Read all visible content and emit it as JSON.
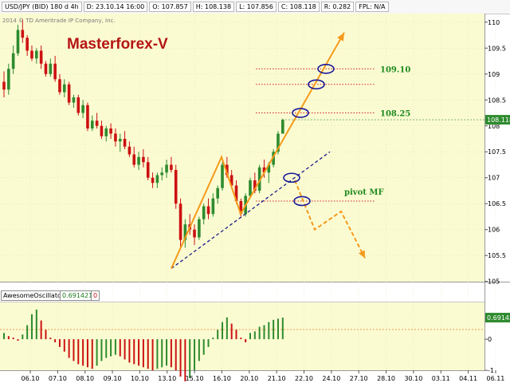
{
  "info_bar": {
    "symbol": "USD/JPY (BID) 180 d 4h",
    "date": "D: 23.10.14 16:00",
    "open": "O: 107.857",
    "high": "H: 108.138",
    "low": "L: 107.856",
    "close": "C: 108.118",
    "range": "R: 0.282",
    "fpl": "FPL: N/A"
  },
  "copyright": "2014 © TD Ameritrade IP Company, Inc.",
  "brand": "Masterforex-V",
  "colors": {
    "bull": "#2e8b2e",
    "bear": "#cc1111",
    "pane_bg": "#fbfbd2",
    "annotation": "#f59a1a",
    "trendline": "#1c1c8c",
    "level": "#d02020",
    "level_label": "#1e8a1e"
  },
  "chart_data": [
    {
      "type": "candlestick",
      "title": "USD/JPY (BID) 180 d 4h",
      "yticks": [
        105,
        105.5,
        106,
        106.5,
        107,
        107.5,
        108,
        108.5,
        109,
        109.5,
        110
      ],
      "ylim": [
        104.98,
        110.12
      ],
      "xticks": [
        "06.10",
        "07.10",
        "08.10",
        "09.10",
        "10.10",
        "13.10",
        "15.10",
        "16.10",
        "20.10",
        "21.10",
        "22.10",
        "24.10",
        "27.10",
        "28.10",
        "30.10",
        "03.11",
        "04.11",
        "06.11"
      ],
      "last_price": 108.118,
      "ohlc": [
        [
          108.85,
          109.05,
          108.55,
          108.7
        ],
        [
          108.7,
          109.2,
          108.6,
          109.1
        ],
        [
          109.1,
          109.55,
          109.0,
          109.4
        ],
        [
          109.4,
          109.95,
          109.35,
          109.85
        ],
        [
          109.85,
          110.05,
          109.6,
          109.7
        ],
        [
          109.7,
          109.75,
          109.35,
          109.45
        ],
        [
          109.45,
          109.55,
          109.25,
          109.3
        ],
        [
          109.3,
          109.5,
          109.2,
          109.45
        ],
        [
          109.45,
          109.55,
          109.1,
          109.2
        ],
        [
          109.2,
          109.25,
          108.95,
          109.0
        ],
        [
          109.0,
          109.3,
          108.95,
          109.2
        ],
        [
          109.2,
          109.35,
          108.85,
          108.9
        ],
        [
          108.9,
          109.0,
          108.6,
          108.65
        ],
        [
          108.65,
          108.9,
          108.55,
          108.8
        ],
        [
          108.8,
          108.85,
          108.4,
          108.45
        ],
        [
          108.45,
          108.6,
          108.35,
          108.55
        ],
        [
          108.55,
          108.6,
          108.2,
          108.25
        ],
        [
          108.25,
          108.5,
          108.15,
          108.4
        ],
        [
          108.4,
          108.45,
          107.9,
          107.95
        ],
        [
          107.95,
          108.2,
          107.9,
          108.1
        ],
        [
          108.1,
          108.25,
          107.95,
          108.0
        ],
        [
          108.0,
          108.1,
          107.75,
          107.8
        ],
        [
          107.8,
          108.0,
          107.7,
          107.95
        ],
        [
          107.95,
          108.05,
          107.75,
          107.85
        ],
        [
          107.85,
          107.95,
          107.6,
          107.7
        ],
        [
          107.7,
          107.85,
          107.5,
          107.75
        ],
        [
          107.75,
          107.9,
          107.55,
          107.6
        ],
        [
          107.6,
          107.7,
          107.4,
          107.45
        ],
        [
          107.45,
          107.6,
          107.2,
          107.25
        ],
        [
          107.25,
          107.5,
          107.15,
          107.4
        ],
        [
          107.4,
          107.55,
          107.2,
          107.3
        ],
        [
          107.3,
          107.4,
          106.95,
          107.0
        ],
        [
          107.0,
          107.1,
          106.8,
          106.9
        ],
        [
          106.9,
          107.1,
          106.8,
          107.05
        ],
        [
          107.05,
          107.2,
          106.95,
          107.1
        ],
        [
          107.1,
          107.35,
          107.0,
          107.25
        ],
        [
          107.25,
          107.4,
          107.1,
          107.15
        ],
        [
          107.15,
          107.25,
          106.4,
          106.5
        ],
        [
          106.5,
          106.6,
          105.65,
          105.8
        ],
        [
          105.8,
          106.2,
          105.65,
          106.1
        ],
        [
          106.1,
          106.3,
          105.9,
          106.0
        ],
        [
          106.0,
          106.1,
          105.7,
          105.85
        ],
        [
          105.85,
          106.25,
          105.8,
          106.2
        ],
        [
          106.2,
          106.5,
          106.1,
          106.45
        ],
        [
          106.45,
          106.6,
          106.2,
          106.3
        ],
        [
          106.3,
          106.7,
          106.25,
          106.6
        ],
        [
          106.6,
          106.85,
          106.5,
          106.8
        ],
        [
          106.8,
          107.3,
          106.75,
          107.25
        ],
        [
          107.25,
          107.4,
          107.0,
          107.05
        ],
        [
          107.05,
          107.15,
          106.8,
          106.85
        ],
        [
          106.85,
          106.95,
          106.5,
          106.55
        ],
        [
          106.55,
          106.6,
          106.25,
          106.3
        ],
        [
          106.3,
          106.7,
          106.25,
          106.65
        ],
        [
          106.65,
          107.0,
          106.6,
          106.95
        ],
        [
          106.95,
          107.1,
          106.7,
          106.75
        ],
        [
          106.75,
          107.25,
          106.7,
          107.2
        ],
        [
          107.2,
          107.35,
          107.0,
          107.1
        ],
        [
          107.1,
          107.3,
          106.9,
          107.25
        ],
        [
          107.25,
          107.55,
          107.2,
          107.5
        ],
        [
          107.5,
          107.9,
          107.45,
          107.85
        ],
        [
          107.85,
          108.14,
          107.85,
          108.12
        ]
      ]
    },
    {
      "type": "bar",
      "title": "AwesomeOscillator",
      "value_label": "0.691421",
      "secondary_label": "0",
      "yticks": [
        -1,
        0
      ],
      "ylim": [
        -1.38,
        1.18
      ],
      "last_value": 0.69142,
      "values": [
        0.2,
        0.1,
        0.05,
        -0.05,
        0.15,
        0.45,
        0.8,
        0.95,
        0.6,
        0.3,
        0.05,
        -0.1,
        -0.25,
        -0.4,
        -0.6,
        -0.7,
        -0.8,
        -0.85,
        -0.9,
        -0.95,
        -0.85,
        -0.7,
        -0.6,
        -0.55,
        -0.5,
        -0.55,
        -0.65,
        -0.75,
        -0.8,
        -0.85,
        -0.9,
        -0.95,
        -1.0,
        -0.95,
        -0.9,
        -0.85,
        -0.9,
        -1.0,
        -1.2,
        -1.35,
        -1.25,
        -1.0,
        -0.7,
        -0.5,
        -0.25,
        0.05,
        0.3,
        0.55,
        0.7,
        0.5,
        0.3,
        0.05,
        -0.1,
        0.2,
        0.25,
        0.4,
        0.45,
        0.55,
        0.62,
        0.66,
        0.691
      ]
    }
  ],
  "annotations": {
    "level_109_10": "109.10",
    "level_108_25": "108.25",
    "pivot": "pivot MF"
  }
}
